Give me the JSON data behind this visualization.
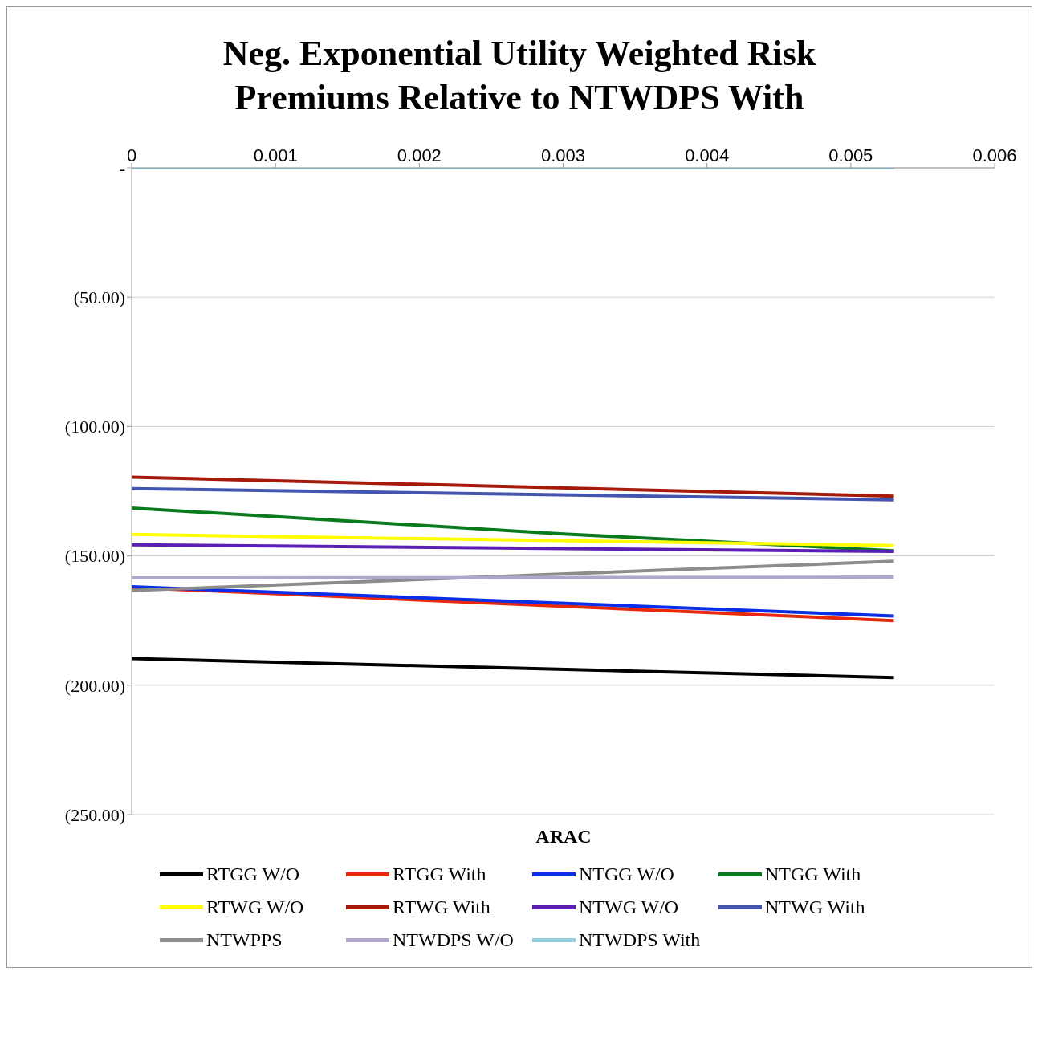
{
  "chart_data": {
    "type": "line",
    "title": "Neg. Exponential Utility Weighted Risk Premiums Relative to NTWDPS With",
    "xlabel": "ARAC",
    "xlim": [
      0,
      0.006
    ],
    "xticks": [
      0,
      0.001,
      0.002,
      0.003,
      0.004,
      0.005,
      0.006
    ],
    "ylim": [
      -250,
      0
    ],
    "yticks": [
      {
        "value": -250,
        "label": "(250.00)"
      },
      {
        "value": -200,
        "label": "(200.00)"
      },
      {
        "value": -150,
        "label": "(150.00)"
      },
      {
        "value": -100,
        "label": "(100.00)"
      },
      {
        "value": -50,
        "label": "(50.00)"
      },
      {
        "value": 0,
        "label": "-"
      }
    ],
    "grid": "y",
    "legend": "bottom",
    "marker": "none",
    "line_style": "solid",
    "series": [
      {
        "name": "RTGG W/O",
        "color": "#000000",
        "x": [
          0,
          0.0053
        ],
        "values": [
          -189.7,
          -197.0
        ]
      },
      {
        "name": "RTGG With",
        "color": "#e8290b",
        "x": [
          0,
          0.0053
        ],
        "values": [
          -162.2,
          -175.0
        ]
      },
      {
        "name": "NTGG W/O",
        "color": "#0a2ee6",
        "x": [
          0,
          0.0053
        ],
        "values": [
          -161.9,
          -173.2
        ]
      },
      {
        "name": "NTGG With",
        "color": "#0a7a1e",
        "x": [
          0,
          0.003,
          0.0053
        ],
        "values": [
          -131.5,
          -141.5,
          -148.0
        ]
      },
      {
        "name": "RTWG W/O",
        "color": "#ffff00",
        "x": [
          0,
          0.0053
        ],
        "values": [
          -141.7,
          -146.0
        ]
      },
      {
        "name": "RTWG With",
        "color": "#a51a0a",
        "x": [
          0,
          0.0053
        ],
        "values": [
          -119.6,
          -126.9
        ]
      },
      {
        "name": "NTWG W/O",
        "color": "#5b1fb5",
        "x": [
          0,
          0.0053
        ],
        "values": [
          -145.7,
          -148.3
        ]
      },
      {
        "name": "NTWG With",
        "color": "#4455b0",
        "x": [
          0,
          0.0053
        ],
        "values": [
          -124.0,
          -128.3
        ]
      },
      {
        "name": "NTWPPS",
        "color": "#8c8c8c",
        "x": [
          0,
          0.0053
        ],
        "values": [
          -163.4,
          -152.1
        ]
      },
      {
        "name": "NTWDPS W/O",
        "color": "#b0a6cc",
        "x": [
          0,
          0.0053
        ],
        "values": [
          -158.5,
          -158.2
        ]
      },
      {
        "name": "NTWDPS With",
        "color": "#92cde0",
        "x": [
          0,
          0.0053
        ],
        "values": [
          0,
          0
        ]
      }
    ]
  }
}
